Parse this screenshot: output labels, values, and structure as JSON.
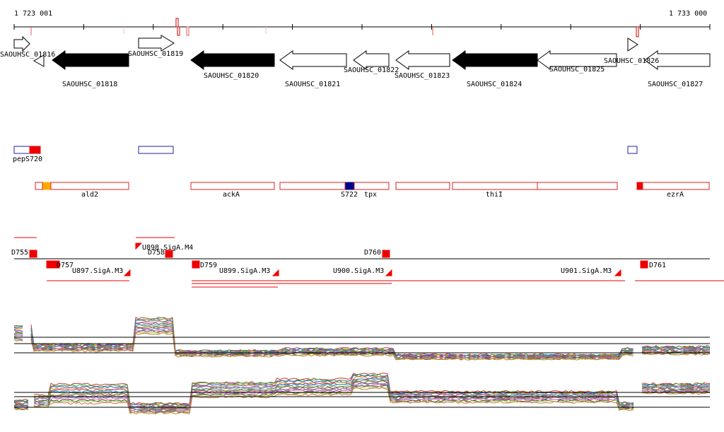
{
  "coords": {
    "start_label": "1 723 001",
    "end_label": "1 733 000"
  },
  "colors": {
    "strand_plus_fill": "#ffffff",
    "strand_minus_fill": "#000000",
    "feature_outline": "#dd2222",
    "highlight_red": "#ee0000",
    "highlight_orange": "#ffaa00",
    "highlight_navy": "#000080",
    "promoter_outline": "#2222aa",
    "track_line": "#000000"
  },
  "genes": [
    {
      "id": "SAOUHSC_01816",
      "label": "SAOUHSC_01816"
    },
    {
      "id": "SAOUHSC_01818",
      "label": "SAOUHSC_01818"
    },
    {
      "id": "SAOUHSC_01819",
      "label": "SAOUHSC_01819"
    },
    {
      "id": "SAOUHSC_01820",
      "label": "SAOUHSC_01820"
    },
    {
      "id": "SAOUHSC_01821",
      "label": "SAOUHSC_01821"
    },
    {
      "id": "SAOUHSC_01822",
      "label": "SAOUHSC_01822"
    },
    {
      "id": "SAOUHSC_01823",
      "label": "SAOUHSC_01823"
    },
    {
      "id": "SAOUHSC_01824",
      "label": "SAOUHSC_01824"
    },
    {
      "id": "SAOUHSC_01825",
      "label": "SAOUHSC_01825"
    },
    {
      "id": "SAOUHSC_01826",
      "label": "SAOUHSC_01826"
    },
    {
      "id": "SAOUHSC_01827",
      "label": "SAOUHSC_01827"
    }
  ],
  "small_features": {
    "pep": "pep",
    "s720": "S720"
  },
  "operons": {
    "ald2": "ald2",
    "ackA": "ackA",
    "s722": "S722",
    "tpx": "tpx",
    "thiI": "thiI",
    "ezrA": "ezrA"
  },
  "regulation": {
    "d755": "D755",
    "d757": "D757",
    "d758": "D758",
    "d759": "D759",
    "d760": "D760",
    "d761": "D761",
    "u897": "U897.SigA.M3",
    "u898": "U898.SigA.M4",
    "u899": "U899.SigA.M3",
    "u900": "U900.SigA.M3",
    "u901": "U901.SigA.M3"
  },
  "expression_tracks": {
    "track_count": 2,
    "series_count": 14
  }
}
